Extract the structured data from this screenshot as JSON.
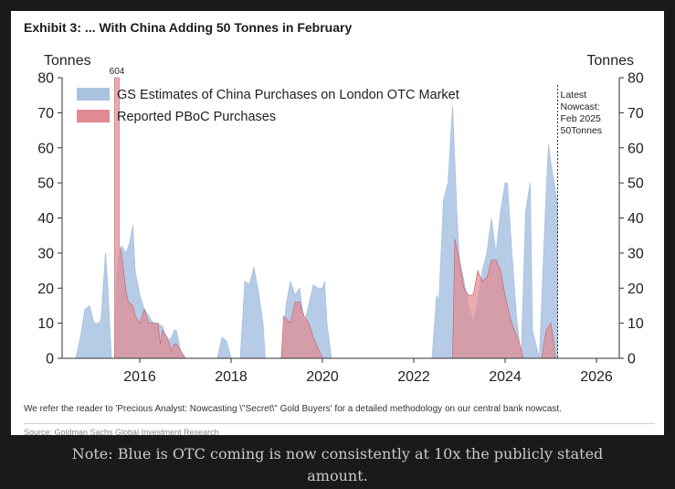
{
  "exhibit": {
    "title": "Exhibit 3: ... With China Adding 50 Tonnes in February",
    "footnote": "We refer the reader to 'Precious Analyst: Nowcasting \\\"Secret\\\" Gold Buyers' for a detailed methodology on our central bank nowcast.",
    "source": "Source: Goldman Sachs Global Investment Research"
  },
  "caption": {
    "line1": "Note: Blue is OTC coming is now consistently at 10x the publicly stated",
    "line2": "amount."
  },
  "colors": {
    "otc": "#a9c2e0",
    "pboc": "#e08b92",
    "pboc_edge": "#c65a66",
    "axis": "#333333"
  },
  "chart_data": {
    "type": "area",
    "ylabel_left": "Tonnes",
    "ylabel_right": "Tonnes",
    "ylim": [
      0,
      80
    ],
    "yticks": [
      0,
      10,
      20,
      30,
      40,
      50,
      60,
      70,
      80
    ],
    "xlim": [
      2014.3,
      2026.5
    ],
    "xticks": [
      2016,
      2018,
      2020,
      2022,
      2024,
      2026
    ],
    "legend_position": "top-left",
    "annotation_604": "604",
    "series": [
      {
        "name": "GS Estimates of China Purchases on London OTC Market",
        "points": [
          [
            2014.6,
            0
          ],
          [
            2014.7,
            6
          ],
          [
            2014.8,
            14
          ],
          [
            2014.9,
            15
          ],
          [
            2015.0,
            10
          ],
          [
            2015.1,
            10
          ],
          [
            2015.15,
            11
          ],
          [
            2015.25,
            30
          ],
          [
            2015.3,
            21
          ],
          [
            2015.38,
            0
          ],
          [
            2015.45,
            0
          ],
          [
            2015.5,
            25
          ],
          [
            2015.55,
            30
          ],
          [
            2015.6,
            32
          ],
          [
            2015.7,
            30
          ],
          [
            2015.78,
            33
          ],
          [
            2015.85,
            38
          ],
          [
            2015.9,
            25
          ],
          [
            2016.0,
            18
          ],
          [
            2016.1,
            14
          ],
          [
            2016.2,
            12
          ],
          [
            2016.3,
            10
          ],
          [
            2016.4,
            10
          ],
          [
            2016.5,
            9
          ],
          [
            2016.6,
            5
          ],
          [
            2016.7,
            6
          ],
          [
            2016.75,
            8
          ],
          [
            2016.8,
            8
          ],
          [
            2016.9,
            2
          ],
          [
            2017.0,
            0
          ],
          [
            2017.7,
            0
          ],
          [
            2017.8,
            6
          ],
          [
            2017.9,
            5
          ],
          [
            2018.0,
            0
          ],
          [
            2018.2,
            0
          ],
          [
            2018.3,
            22
          ],
          [
            2018.4,
            21
          ],
          [
            2018.5,
            26
          ],
          [
            2018.6,
            19
          ],
          [
            2018.7,
            10
          ],
          [
            2018.75,
            0
          ],
          [
            2019.1,
            0
          ],
          [
            2019.2,
            15
          ],
          [
            2019.3,
            22
          ],
          [
            2019.4,
            18
          ],
          [
            2019.5,
            20
          ],
          [
            2019.6,
            10
          ],
          [
            2019.7,
            15
          ],
          [
            2019.8,
            21
          ],
          [
            2019.9,
            20
          ],
          [
            2020.0,
            20
          ],
          [
            2020.05,
            22
          ],
          [
            2020.1,
            10
          ],
          [
            2020.2,
            0
          ],
          [
            2022.4,
            0
          ],
          [
            2022.5,
            18
          ],
          [
            2022.55,
            16
          ],
          [
            2022.65,
            45
          ],
          [
            2022.75,
            50
          ],
          [
            2022.85,
            72
          ],
          [
            2022.95,
            40
          ],
          [
            2023.0,
            28
          ],
          [
            2023.1,
            22
          ],
          [
            2023.2,
            15
          ],
          [
            2023.3,
            10
          ],
          [
            2023.4,
            16
          ],
          [
            2023.5,
            25
          ],
          [
            2023.6,
            30
          ],
          [
            2023.7,
            40
          ],
          [
            2023.8,
            30
          ],
          [
            2023.9,
            42
          ],
          [
            2024.0,
            50
          ],
          [
            2024.05,
            50
          ],
          [
            2024.15,
            30
          ],
          [
            2024.25,
            12
          ],
          [
            2024.35,
            0
          ],
          [
            2024.45,
            42
          ],
          [
            2024.55,
            50
          ],
          [
            2024.6,
            8
          ],
          [
            2024.75,
            0
          ],
          [
            2024.9,
            48
          ],
          [
            2024.95,
            61
          ],
          [
            2025.0,
            56
          ],
          [
            2025.1,
            48
          ],
          [
            2025.15,
            44
          ],
          [
            2025.15,
            0
          ]
        ]
      },
      {
        "name": "Reported PBoC Purchases",
        "points": [
          [
            2015.45,
            0
          ],
          [
            2015.45,
            80
          ],
          [
            2015.55,
            80
          ],
          [
            2015.55,
            32
          ],
          [
            2015.6,
            30
          ],
          [
            2015.7,
            19
          ],
          [
            2015.75,
            16
          ],
          [
            2015.85,
            15
          ],
          [
            2015.9,
            12
          ],
          [
            2016.0,
            10
          ],
          [
            2016.1,
            14
          ],
          [
            2016.2,
            10
          ],
          [
            2016.3,
            10
          ],
          [
            2016.4,
            10
          ],
          [
            2016.45,
            4
          ],
          [
            2016.5,
            8
          ],
          [
            2016.6,
            6
          ],
          [
            2016.7,
            2
          ],
          [
            2016.75,
            4
          ],
          [
            2016.8,
            4
          ],
          [
            2016.9,
            2
          ],
          [
            2017.0,
            0
          ],
          [
            2019.1,
            0
          ],
          [
            2019.15,
            12
          ],
          [
            2019.3,
            10
          ],
          [
            2019.4,
            16
          ],
          [
            2019.5,
            16
          ],
          [
            2019.6,
            12
          ],
          [
            2019.7,
            10
          ],
          [
            2019.8,
            6
          ],
          [
            2019.9,
            3
          ],
          [
            2020.0,
            0
          ],
          [
            2022.85,
            0
          ],
          [
            2022.9,
            34
          ],
          [
            2023.0,
            28
          ],
          [
            2023.1,
            20
          ],
          [
            2023.2,
            18
          ],
          [
            2023.3,
            18
          ],
          [
            2023.4,
            25
          ],
          [
            2023.5,
            22
          ],
          [
            2023.6,
            23
          ],
          [
            2023.7,
            28
          ],
          [
            2023.8,
            28
          ],
          [
            2023.9,
            25
          ],
          [
            2024.0,
            18
          ],
          [
            2024.1,
            12
          ],
          [
            2024.2,
            8
          ],
          [
            2024.3,
            5
          ],
          [
            2024.4,
            0
          ],
          [
            2024.8,
            0
          ],
          [
            2024.9,
            8
          ],
          [
            2025.0,
            10
          ],
          [
            2025.05,
            6
          ],
          [
            2025.1,
            0
          ]
        ]
      }
    ],
    "nowcast_x": 2025.15,
    "nowcast_label": [
      "Latest",
      "Nowcast:",
      "Feb 2025",
      "50Tonnes"
    ]
  }
}
